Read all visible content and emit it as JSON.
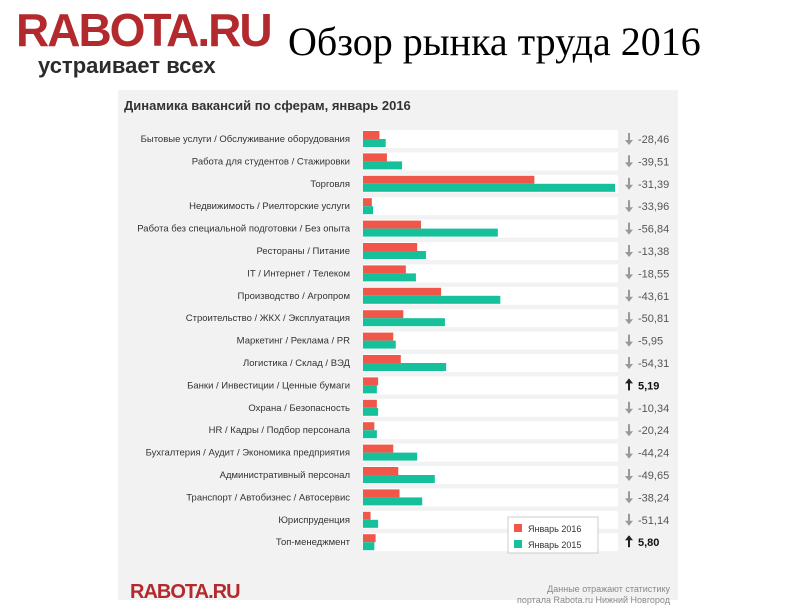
{
  "header": {
    "logo": "RABOTA.RU",
    "tagline": "устраивает всех",
    "title": "Обзор рынка труда 2016"
  },
  "chart_data": {
    "type": "bar",
    "orientation": "horizontal",
    "title": "Динамика вакансий по сферам, январь 2016",
    "categories": [
      "Бытовые услуги / Обслуживание оборудования",
      "Работа для студентов / Стажировки",
      "Торговля",
      "Недвижимость / Риелторские услуги",
      "Работа без специальной подготовки / Без опыта",
      "Рестораны / Питание",
      "IT / Интернет / Телеком",
      "Производство / Агропром",
      "Строительство / ЖКХ / Эксплуатация",
      "Маркетинг / Реклама / PR",
      "Логистика / Склад / ВЭД",
      "Банки / Инвестиции / Ценные бумаги",
      "Охрана / Безопасность",
      "HR / Кадры / Подбор персонала",
      "Бухгалтерия / Аудит / Экономика предприятия",
      "Административный персонал",
      "Транспорт / Автобизнес / Автосервис",
      "Юриспруденция",
      "Топ-менеджмент"
    ],
    "series": [
      {
        "name": "Январь 2016",
        "color": "#f0564a",
        "values": [
          6.5,
          9.5,
          68,
          3.5,
          23,
          21.5,
          17,
          31,
          16,
          12,
          15,
          6,
          5.5,
          4.5,
          12,
          14,
          14.5,
          3,
          5
        ]
      },
      {
        "name": "Январь 2015",
        "color": "#16c09b",
        "values": [
          9,
          15.5,
          100,
          4,
          53.5,
          25,
          21,
          54.5,
          32.5,
          13,
          33,
          5.5,
          6,
          5.5,
          21.5,
          28.5,
          23.5,
          6,
          4.5
        ]
      }
    ],
    "change": [
      "-28,46",
      "-39,51",
      "-31,39",
      "-33,96",
      "-56,84",
      "-13,38",
      "-18,55",
      "-43,61",
      "-50,81",
      "-5,95",
      "-54,31",
      "5,19",
      "-10,34",
      "-20,24",
      "-44,24",
      "-49,65",
      "-38,24",
      "-51,14",
      "5,80"
    ],
    "change_direction": [
      "down",
      "down",
      "down",
      "down",
      "down",
      "down",
      "down",
      "down",
      "down",
      "down",
      "down",
      "up",
      "down",
      "down",
      "down",
      "down",
      "down",
      "down",
      "up"
    ],
    "xlim": [
      0,
      100
    ],
    "legend_position": "bottom-right"
  },
  "footer": {
    "logo": "RABOTA.RU",
    "note_line1": "Данные отражают статистику",
    "note_line2": "портала Rabota.ru Нижний Новгород"
  }
}
